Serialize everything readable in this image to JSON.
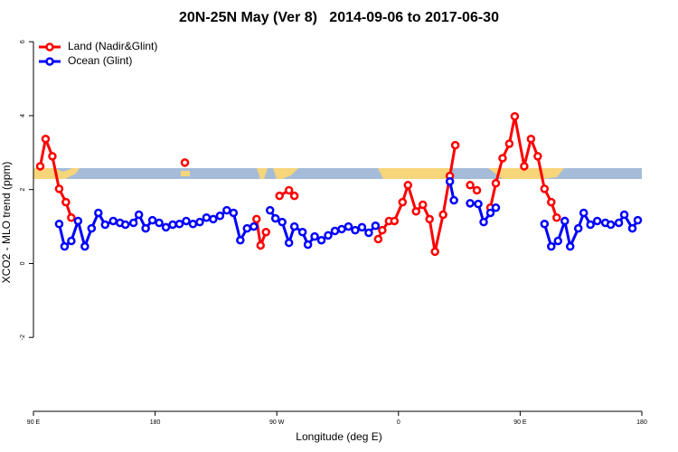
{
  "chart_data": {
    "type": "line",
    "title": "20N-25N May (Ver 8)   2014-09-06 to 2017-06-30",
    "xlabel": "Longitude (deg E)",
    "ylabel": "XCO2 - MLO trend (ppm)",
    "xlim": [
      90,
      540
    ],
    "ylim": [
      -4,
      6.2
    ],
    "xticks": [
      {
        "value": 90,
        "label": "90 E"
      },
      180,
      {
        "value": 270,
        "label": "90 W"
      },
      {
        "value": 360,
        "label": "0"
      },
      {
        "value": 450,
        "label": "90 E"
      },
      {
        "value": 540,
        "label": "180"
      }
    ],
    "yticks": [
      -2,
      0,
      2,
      4,
      6
    ],
    "legend": "top-left",
    "series": [
      {
        "name": "Land (Nadir&Glint)",
        "color": "#ff0000",
        "x": [
          95,
          99,
          104,
          109,
          114,
          118,
          null,
          202,
          null,
          255,
          258,
          262,
          null,
          272,
          279,
          283,
          null,
          345,
          348,
          353,
          357,
          363,
          367,
          373,
          378,
          383,
          387,
          393,
          398,
          402,
          null,
          413,
          418,
          null,
          428,
          432,
          437,
          442,
          446,
          453,
          458,
          463,
          468,
          473,
          477
        ],
        "values": [
          2.63,
          3.37,
          2.9,
          2.02,
          1.66,
          1.24,
          null,
          2.73,
          null,
          1.2,
          0.49,
          0.85,
          null,
          1.83,
          1.98,
          1.83,
          null,
          0.66,
          0.9,
          1.15,
          1.15,
          1.66,
          2.12,
          1.41,
          1.59,
          1.2,
          0.32,
          1.32,
          2.37,
          3.2,
          null,
          2.12,
          1.98,
          null,
          1.51,
          2.17,
          2.85,
          3.24,
          3.98,
          2.63,
          3.37,
          2.9,
          2.02,
          1.66,
          1.24
        ]
      },
      {
        "name": "Ocean (Glint)",
        "color": "#0000ff",
        "x": [
          109,
          113,
          118,
          123,
          128,
          133,
          138,
          143,
          149,
          154,
          158,
          164,
          168,
          173,
          178,
          183,
          188,
          193,
          198,
          203,
          208,
          213,
          218,
          223,
          228,
          233,
          238,
          243,
          248,
          253,
          null,
          265,
          269,
          274,
          279,
          283,
          289,
          293,
          298,
          303,
          308,
          313,
          318,
          323,
          328,
          333,
          338,
          343,
          null,
          398,
          401,
          null,
          413,
          419,
          423,
          428,
          432,
          null,
          468,
          473,
          478,
          483,
          487,
          493,
          497,
          502,
          507,
          513,
          517,
          523,
          527,
          533,
          537
        ],
        "values": [
          1.07,
          0.46,
          0.61,
          1.15,
          0.46,
          0.95,
          1.37,
          1.05,
          1.15,
          1.1,
          1.05,
          1.1,
          1.32,
          0.95,
          1.17,
          1.1,
          0.98,
          1.05,
          1.07,
          1.15,
          1.07,
          1.12,
          1.24,
          1.2,
          1.29,
          1.44,
          1.37,
          0.63,
          0.95,
          1.0,
          null,
          1.44,
          1.22,
          1.12,
          0.56,
          1.0,
          0.85,
          0.51,
          0.73,
          0.63,
          0.76,
          0.88,
          0.93,
          1.0,
          0.9,
          0.98,
          0.83,
          1.02,
          null,
          2.22,
          1.71,
          null,
          1.63,
          1.61,
          1.12,
          1.37,
          1.51,
          null,
          1.07,
          0.46,
          0.61,
          1.15,
          0.46,
          0.95,
          1.37,
          1.05,
          1.15,
          1.1,
          1.05,
          1.1,
          1.32,
          0.95,
          1.17
        ]
      }
    ]
  }
}
